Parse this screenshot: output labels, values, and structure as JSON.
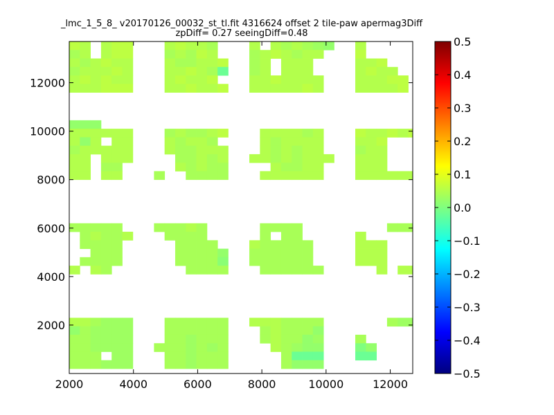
{
  "chart_data": {
    "type": "heatmap",
    "title": "_lmc_1_5_8_ v20170126_00032_st_tl.fit 4316624 offset 2 tile-paw apermag3Diff",
    "subtitle": "zpDiff= 0.27 seeingDiff=0.48",
    "xlabel": "",
    "ylabel": "",
    "xlim": [
      2000,
      12700
    ],
    "ylim": [
      0,
      13700
    ],
    "xticks": [
      2000,
      4000,
      6000,
      8000,
      10000,
      12000
    ],
    "yticks": [
      2000,
      4000,
      6000,
      8000,
      10000,
      12000
    ],
    "cell_size": [
      330,
      350
    ],
    "colormap": "jet",
    "colorbar": {
      "min": -0.5,
      "max": 0.5,
      "ticks": [
        "0.5",
        "0.4",
        "0.3",
        "0.2",
        "0.1",
        "0.0",
        "−0.1",
        "−0.2",
        "−0.3",
        "−0.4",
        "−0.5"
      ]
    },
    "cells_x": [
      2000,
      2330,
      2660,
      2990,
      3320,
      3650,
      4640,
      4970,
      5300,
      5630,
      5960,
      6290,
      6620,
      7610,
      7940,
      8270,
      8600,
      8930,
      9260,
      9590,
      9920,
      10910,
      11240,
      11570,
      11900,
      12230,
      12560
    ],
    "rows": [
      {
        "y": 13350,
        "values": [
          0.06,
          0.05,
          null,
          0.05,
          0.06,
          0.06,
          null,
          0.05,
          0.06,
          0.05,
          0.05,
          0.04,
          null,
          0.05,
          null,
          0.05,
          0.04,
          0.05,
          0.04,
          0.03,
          0.02,
          0.05,
          null,
          null,
          null,
          null,
          null
        ]
      },
      {
        "y": 13000,
        "values": [
          0.04,
          0.05,
          null,
          0.05,
          0.06,
          0.06,
          null,
          0.04,
          0.05,
          0.04,
          0.06,
          0.05,
          null,
          0.04,
          0.05,
          0.06,
          0.05,
          0.04,
          0.05,
          0.05,
          null,
          0.06,
          null,
          null,
          null,
          null,
          null
        ]
      },
      {
        "y": 12650,
        "values": [
          0.05,
          0.04,
          0.05,
          0.06,
          0.05,
          0.05,
          null,
          0.05,
          0.04,
          0.04,
          0.05,
          0.05,
          0.06,
          0.04,
          0.05,
          null,
          0.05,
          0.05,
          0.05,
          null,
          null,
          0.05,
          0.05,
          0.06,
          null,
          null,
          null
        ]
      },
      {
        "y": 12300,
        "values": [
          0.04,
          0.05,
          0.05,
          0.05,
          0.06,
          0.05,
          null,
          0.05,
          0.05,
          0.06,
          0.05,
          0.04,
          -0.02,
          0.04,
          0.05,
          null,
          0.05,
          0.05,
          0.05,
          null,
          null,
          0.05,
          0.06,
          0.05,
          0.05,
          null,
          null
        ]
      },
      {
        "y": 11950,
        "values": [
          0.05,
          0.06,
          0.05,
          0.06,
          0.05,
          0.05,
          null,
          0.05,
          0.06,
          0.05,
          0.05,
          0.06,
          null,
          0.05,
          0.05,
          0.06,
          0.05,
          0.05,
          0.05,
          0.05,
          null,
          0.05,
          0.05,
          0.05,
          0.06,
          0.06,
          null
        ]
      },
      {
        "y": 11600,
        "values": [
          0.05,
          0.05,
          0.05,
          0.06,
          0.06,
          0.06,
          null,
          0.05,
          0.05,
          0.06,
          0.05,
          0.05,
          0.06,
          0.05,
          0.05,
          0.05,
          0.05,
          0.05,
          0.06,
          0.05,
          null,
          0.05,
          0.05,
          0.05,
          0.05,
          0.06,
          null
        ]
      },
      {
        "y": 10100,
        "values": [
          0.02,
          0.02,
          0.02,
          null,
          null,
          null,
          null,
          null,
          null,
          null,
          null,
          null,
          null,
          null,
          null,
          null,
          null,
          null,
          null,
          null,
          null,
          null,
          null,
          null,
          null,
          null,
          null
        ]
      },
      {
        "y": 9750,
        "values": [
          0.05,
          0.05,
          0.05,
          0.05,
          0.05,
          0.05,
          null,
          0.04,
          0.05,
          0.04,
          0.04,
          0.05,
          0.06,
          null,
          0.05,
          0.05,
          0.05,
          0.05,
          0.04,
          0.05,
          null,
          0.06,
          0.05,
          0.05,
          0.06,
          0.05,
          0.06
        ]
      },
      {
        "y": 9400,
        "values": [
          0.05,
          0.02,
          0.05,
          null,
          0.05,
          0.05,
          null,
          0.05,
          0.04,
          0.05,
          0.05,
          0.04,
          null,
          null,
          0.05,
          0.04,
          0.05,
          0.05,
          0.05,
          0.05,
          null,
          0.05,
          0.05,
          0.06,
          null,
          null,
          null
        ]
      },
      {
        "y": 9050,
        "values": [
          0.04,
          0.05,
          0.05,
          0.05,
          0.05,
          0.05,
          null,
          0.05,
          0.04,
          0.04,
          0.05,
          0.05,
          0.05,
          null,
          0.05,
          0.04,
          0.05,
          0.04,
          0.05,
          0.05,
          null,
          0.04,
          0.05,
          0.05,
          null,
          null,
          null
        ]
      },
      {
        "y": 8700,
        "values": [
          0.05,
          0.05,
          null,
          0.05,
          0.05,
          0.05,
          null,
          null,
          0.04,
          0.04,
          0.05,
          0.04,
          0.05,
          0.05,
          0.05,
          0.04,
          0.05,
          0.04,
          0.05,
          0.05,
          0.05,
          0.05,
          0.05,
          0.05,
          null,
          null,
          null
        ]
      },
      {
        "y": 8350,
        "values": [
          0.05,
          0.05,
          null,
          0.04,
          0.04,
          null,
          null,
          null,
          0.05,
          0.04,
          0.05,
          0.04,
          0.04,
          null,
          null,
          0.05,
          0.04,
          0.04,
          0.05,
          0.05,
          null,
          0.05,
          0.05,
          0.05,
          null,
          null,
          null
        ]
      },
      {
        "y": 8000,
        "values": [
          0.05,
          0.05,
          null,
          0.05,
          0.05,
          null,
          0.04,
          null,
          null,
          0.04,
          0.04,
          0.04,
          0.04,
          null,
          0.05,
          0.05,
          0.05,
          0.05,
          0.05,
          0.05,
          null,
          0.05,
          0.05,
          0.05,
          0.05,
          0.05,
          0.05
        ]
      },
      {
        "y": 5850,
        "values": [
          0.04,
          0.04,
          0.04,
          0.04,
          0.04,
          null,
          0.04,
          0.04,
          0.04,
          0.05,
          0.04,
          null,
          null,
          null,
          0.04,
          0.04,
          0.04,
          0.04,
          null,
          null,
          null,
          null,
          null,
          null,
          0.04,
          0.04,
          0.04
        ]
      },
      {
        "y": 5500,
        "values": [
          null,
          0.04,
          0.05,
          0.04,
          0.04,
          0.05,
          null,
          0.04,
          0.04,
          0.04,
          0.04,
          null,
          null,
          null,
          0.04,
          null,
          0.04,
          0.04,
          null,
          null,
          null,
          0.05,
          null,
          null,
          null,
          null,
          null
        ]
      },
      {
        "y": 5150,
        "values": [
          null,
          0.04,
          0.04,
          0.04,
          0.04,
          null,
          null,
          null,
          0.04,
          0.04,
          0.04,
          0.04,
          null,
          0.05,
          0.04,
          0.04,
          0.04,
          0.04,
          0.04,
          null,
          null,
          0.05,
          0.05,
          0.05,
          null,
          null,
          null
        ]
      },
      {
        "y": 4800,
        "values": [
          null,
          null,
          0.04,
          0.04,
          0.04,
          null,
          null,
          null,
          0.04,
          0.04,
          0.04,
          0.04,
          0.02,
          0.04,
          0.04,
          0.04,
          0.04,
          0.04,
          0.04,
          null,
          null,
          0.05,
          0.05,
          0.05,
          null,
          null,
          null
        ]
      },
      {
        "y": 4450,
        "values": [
          null,
          0.04,
          0.04,
          0.04,
          0.04,
          null,
          null,
          null,
          0.04,
          0.04,
          0.04,
          0.04,
          0.01,
          0.04,
          0.04,
          0.04,
          0.04,
          0.04,
          0.04,
          null,
          null,
          0.05,
          0.05,
          0.05,
          null,
          null,
          null
        ]
      },
      {
        "y": 4100,
        "values": [
          0.05,
          null,
          0.05,
          0.04,
          null,
          null,
          null,
          null,
          null,
          0.04,
          0.04,
          0.04,
          0.04,
          null,
          0.04,
          0.04,
          0.04,
          0.04,
          0.04,
          0.04,
          null,
          null,
          null,
          0.05,
          null,
          0.05,
          0.05
        ]
      },
      {
        "y": 1950,
        "values": [
          0.05,
          0.05,
          0.04,
          0.03,
          0.03,
          0.03,
          null,
          0.04,
          0.04,
          0.04,
          0.04,
          0.04,
          0.04,
          0.05,
          0.05,
          0.05,
          0.04,
          0.04,
          0.04,
          0.04,
          null,
          null,
          null,
          null,
          0.04,
          0.03,
          0.03
        ]
      },
      {
        "y": 1600,
        "values": [
          0.02,
          0.04,
          0.03,
          0.03,
          0.03,
          0.03,
          null,
          0.04,
          0.04,
          0.04,
          0.04,
          0.04,
          0.04,
          null,
          0.04,
          0.05,
          0.04,
          0.04,
          0.04,
          0.02,
          null,
          null,
          null,
          null,
          null,
          null,
          null
        ]
      },
      {
        "y": 1250,
        "values": [
          0.04,
          0.04,
          0.03,
          0.03,
          0.03,
          0.03,
          null,
          0.04,
          0.04,
          0.03,
          0.04,
          0.04,
          0.04,
          null,
          0.04,
          0.05,
          0.04,
          0.04,
          0.02,
          0.03,
          null,
          0.04,
          null,
          null,
          null,
          null,
          null
        ]
      },
      {
        "y": 900,
        "values": [
          0.04,
          0.04,
          0.03,
          0.03,
          0.03,
          0.03,
          0.04,
          0.04,
          0.04,
          0.03,
          0.04,
          0.03,
          0.04,
          null,
          null,
          0.05,
          0.04,
          0.03,
          0.02,
          0.02,
          null,
          0.0,
          0.02,
          null,
          null,
          null,
          null
        ]
      },
      {
        "y": 550,
        "values": [
          0.04,
          0.04,
          0.04,
          null,
          0.03,
          0.03,
          null,
          0.04,
          0.04,
          0.03,
          0.04,
          0.04,
          0.04,
          null,
          null,
          null,
          0.04,
          -0.02,
          -0.02,
          -0.02,
          null,
          -0.02,
          -0.02,
          null,
          null,
          null,
          null
        ]
      },
      {
        "y": 200,
        "values": [
          0.04,
          0.04,
          0.04,
          0.03,
          0.03,
          0.03,
          null,
          0.04,
          0.04,
          0.03,
          0.04,
          0.04,
          0.04,
          null,
          null,
          null,
          0.04,
          0.02,
          0.02,
          0.02,
          null,
          null,
          null,
          null,
          null,
          null,
          null
        ]
      }
    ]
  }
}
